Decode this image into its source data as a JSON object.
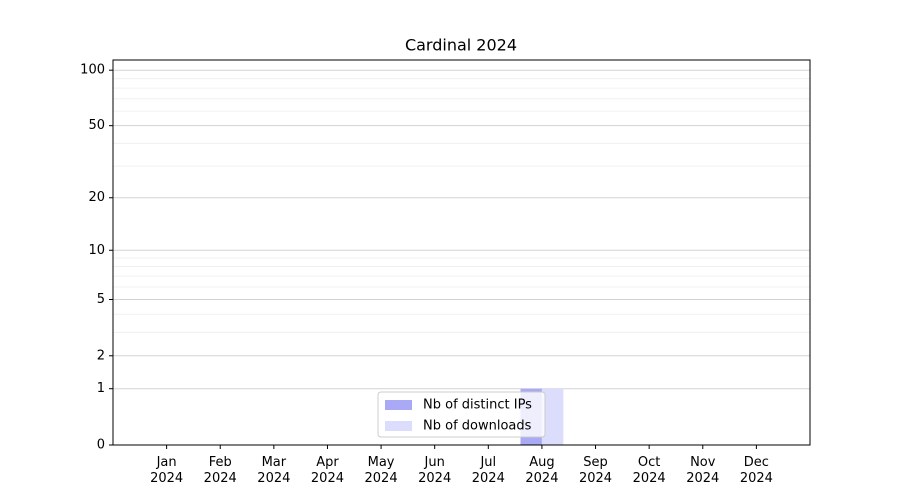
{
  "chart_data": {
    "type": "bar",
    "title": "Cardinal 2024",
    "categories": [
      "Jan\n2024",
      "Feb\n2024",
      "Mar\n2024",
      "Apr\n2024",
      "May\n2024",
      "Jun\n2024",
      "Jul\n2024",
      "Aug\n2024",
      "Sep\n2024",
      "Oct\n2024",
      "Nov\n2024",
      "Dec\n2024"
    ],
    "series": [
      {
        "name": "Nb of distinct IPs",
        "color": "#a9a9f5",
        "values": [
          0,
          0,
          0,
          0,
          0,
          0,
          0,
          1,
          0,
          0,
          0,
          0
        ]
      },
      {
        "name": "Nb of downloads",
        "color": "#dcdcfc",
        "values": [
          0,
          0,
          0,
          0,
          0,
          0,
          0,
          1,
          0,
          0,
          0,
          0
        ]
      }
    ],
    "yscale": "log1p",
    "ylim": [
      0,
      113.5
    ],
    "yticks": [
      0,
      1,
      2,
      5,
      10,
      20,
      50,
      100
    ],
    "minor_yticks": [
      3,
      4,
      6,
      7,
      8,
      9,
      30,
      40,
      60,
      70,
      80,
      90
    ],
    "grid": true,
    "legend": "lower center"
  }
}
